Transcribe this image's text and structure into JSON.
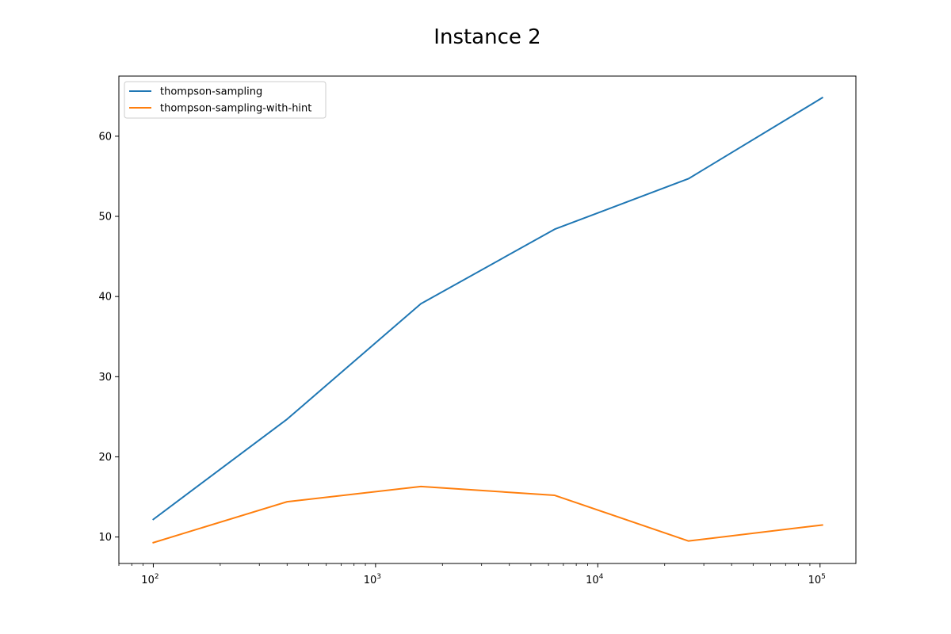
{
  "chart_data": {
    "type": "line",
    "title": "Instance 2",
    "xlabel": "",
    "ylabel": "",
    "xscale": "log",
    "x": [
      100,
      400,
      1600,
      6400,
      25600,
      102400
    ],
    "xlim": [
      70,
      145000
    ],
    "ylim": [
      6.7,
      67.5
    ],
    "yticks": [
      10,
      20,
      30,
      40,
      50,
      60
    ],
    "xticks": [
      100,
      1000,
      10000,
      100000
    ],
    "xtick_labels": [
      {
        "base": "10",
        "exp": "2"
      },
      {
        "base": "10",
        "exp": "3"
      },
      {
        "base": "10",
        "exp": "4"
      },
      {
        "base": "10",
        "exp": "5"
      }
    ],
    "grid": false,
    "legend_position": "upper-left",
    "series": [
      {
        "name": "thompson-sampling",
        "color": "#1f77b4",
        "values": [
          12.2,
          24.7,
          39.1,
          48.4,
          54.7,
          64.8
        ]
      },
      {
        "name": "thompson-sampling-with-hint",
        "color": "#ff7f0e",
        "values": [
          9.3,
          14.4,
          16.3,
          15.2,
          9.5,
          11.5
        ]
      }
    ]
  }
}
